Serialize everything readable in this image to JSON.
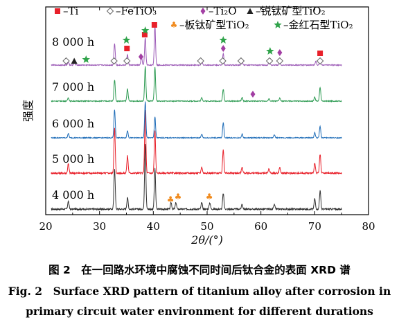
{
  "chart_data": {
    "type": "line",
    "xlabel": "2θ/(°)",
    "ylabel": "强度",
    "xlim": [
      20,
      80
    ],
    "xticks": [
      20,
      30,
      40,
      50,
      60,
      70,
      80
    ],
    "x_range_data": [
      21,
      75
    ],
    "colors": {
      "Ti": "#e8202a",
      "FeTiO3": "#666666",
      "Ti2O": "#a23ea3",
      "anatase": "#222222",
      "brookite": "#f08a1d",
      "rutile": "#2fa34a"
    },
    "legend": [
      {
        "marker": "Ti",
        "symbol": "■",
        "label": "–Ti"
      },
      {
        "marker": "FeTiO3",
        "symbol": "◇",
        "label": "–FeTiO₃"
      },
      {
        "marker": "Ti2O",
        "symbol": "♦",
        "label": "–Ti₂O"
      },
      {
        "marker": "anatase",
        "symbol": "▲",
        "label": "–锐钛矿型TiO₂"
      },
      {
        "marker": "brookite",
        "symbol": "♣",
        "label": "–板钛矿型TiO₂"
      },
      {
        "marker": "rutile",
        "symbol": "★",
        "label": "–金红石型TiO₂"
      }
    ],
    "series": [
      {
        "name": "4 000 h",
        "color": "#333333",
        "peaks": [
          [
            24.2,
            0.12
          ],
          [
            32.8,
            0.62
          ],
          [
            35.2,
            0.18
          ],
          [
            38.5,
            1.0
          ],
          [
            40.3,
            0.62
          ],
          [
            43.3,
            0.1
          ],
          [
            44.2,
            0.1
          ],
          [
            49.0,
            0.1
          ],
          [
            50.5,
            0.1
          ],
          [
            53.0,
            0.24
          ],
          [
            56.5,
            0.08
          ],
          [
            62.5,
            0.07
          ],
          [
            70.0,
            0.16
          ],
          [
            71.0,
            0.28
          ]
        ],
        "markers": [
          {
            "type": "brookite",
            "x": [
              43.2,
              44.6,
              50.4
            ]
          }
        ]
      },
      {
        "name": "5 000 h",
        "color": "#e8202a",
        "peaks": [
          [
            24.2,
            0.15
          ],
          [
            32.8,
            0.72
          ],
          [
            35.2,
            0.28
          ],
          [
            38.5,
            1.0
          ],
          [
            40.3,
            0.68
          ],
          [
            49.0,
            0.1
          ],
          [
            53.0,
            0.38
          ],
          [
            56.5,
            0.1
          ],
          [
            61.5,
            0.07
          ],
          [
            63.5,
            0.09
          ],
          [
            70.0,
            0.16
          ],
          [
            71.0,
            0.3
          ]
        ],
        "markers": []
      },
      {
        "name": "6 000 h",
        "color": "#1f6db8",
        "peaks": [
          [
            24.2,
            0.12
          ],
          [
            32.8,
            0.78
          ],
          [
            35.2,
            0.2
          ],
          [
            38.5,
            1.0
          ],
          [
            40.3,
            0.58
          ],
          [
            49.0,
            0.1
          ],
          [
            53.0,
            0.42
          ],
          [
            56.5,
            0.1
          ],
          [
            62.5,
            0.08
          ],
          [
            70.0,
            0.14
          ],
          [
            71.0,
            0.32
          ]
        ],
        "markers": []
      },
      {
        "name": "7 000 h",
        "color": "#2e9b53",
        "peaks": [
          [
            24.2,
            0.1
          ],
          [
            32.8,
            0.62
          ],
          [
            35.2,
            0.36
          ],
          [
            38.5,
            1.0
          ],
          [
            40.3,
            0.98
          ],
          [
            49.0,
            0.1
          ],
          [
            53.0,
            0.34
          ],
          [
            56.5,
            0.1
          ],
          [
            61.5,
            0.07
          ],
          [
            63.5,
            0.09
          ],
          [
            70.0,
            0.12
          ],
          [
            71.0,
            0.4
          ]
        ],
        "markers": [
          {
            "type": "Ti2O",
            "x": [
              58.5
            ]
          }
        ]
      },
      {
        "name": "8 000 h",
        "color": "#9b59b6",
        "peaks": [
          [
            24.2,
            0.08
          ],
          [
            25.3,
            0.06
          ],
          [
            32.8,
            0.55
          ],
          [
            35.2,
            0.28
          ],
          [
            37.8,
            0.22
          ],
          [
            38.5,
            0.7
          ],
          [
            40.3,
            1.0
          ],
          [
            49.0,
            0.1
          ],
          [
            53.0,
            0.3
          ],
          [
            56.5,
            0.12
          ],
          [
            61.5,
            0.08
          ],
          [
            63.5,
            0.1
          ],
          [
            70.2,
            0.1
          ],
          [
            71.0,
            0.16
          ]
        ],
        "markers": [
          {
            "type": "FeTiO3",
            "x": [
              23.8,
              32.7,
              35.1,
              48.8,
              52.9,
              56.3,
              61.6,
              63.5,
              71.0
            ]
          },
          {
            "type": "anatase",
            "x": [
              25.3
            ]
          },
          {
            "type": "rutile",
            "x": [
              27.5,
              35.0,
              53.0,
              61.7
            ]
          },
          {
            "type": "Ti",
            "x": [
              35.1,
              38.4,
              40.2,
              71.0
            ]
          },
          {
            "type": "rutile",
            "x": [
              38.5
            ]
          },
          {
            "type": "Ti2O",
            "x": [
              37.7,
              53.0,
              63.5
            ]
          }
        ]
      }
    ]
  },
  "caption": {
    "cn": "图 2　在一回路水环境中腐蚀不同时间后钛合金的表面 XRD 谱",
    "en_line1": "Fig. 2　Surface XRD pattern of titanium alloy after corrosion in",
    "en_line2": "primary circuit water environment for different durations"
  }
}
